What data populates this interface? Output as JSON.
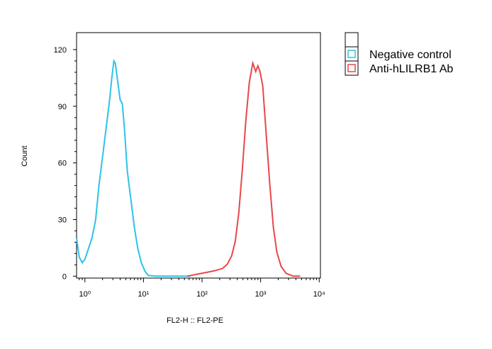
{
  "chart_data": {
    "type": "line",
    "x_label": "FL2-H :: FL2-PE",
    "y_label": "Count",
    "x_scale": "log",
    "xlim": [
      0.72,
      10500
    ],
    "ylim": [
      -1,
      129
    ],
    "xticks": [
      {
        "value": 1,
        "label": "10⁰"
      },
      {
        "value": 10,
        "label": "10¹"
      },
      {
        "value": 100,
        "label": "10²"
      },
      {
        "value": 1000,
        "label": "10³"
      },
      {
        "value": 10000,
        "label": "10⁴"
      }
    ],
    "yticks": [
      0,
      30,
      60,
      90,
      120
    ],
    "legend": "outside-right-top",
    "series": [
      {
        "name": "Negative control",
        "color": "#2cc3e8",
        "x": [
          0.72,
          0.8,
          0.9,
          1,
          1.15,
          1.32,
          1.52,
          1.74,
          2.0,
          2.3,
          2.64,
          2.87,
          3.12,
          3.3,
          3.58,
          4.0,
          4.35,
          4.73,
          5.28,
          6.07,
          6.97,
          8.0,
          9.2,
          10.6,
          12.1,
          16.0,
          64
        ],
        "values": [
          20.2,
          10.1,
          7.1,
          9,
          14.6,
          20.2,
          29.6,
          48.4,
          63.4,
          78.4,
          93.4,
          104.6,
          114,
          112.9,
          104.6,
          93.4,
          91.5,
          78.4,
          55.9,
          40.9,
          25.9,
          14.6,
          7.1,
          2.6,
          0.4,
          0,
          0
        ]
      },
      {
        "name": "Anti-hLILRB1 Ab",
        "color": "#e8474a",
        "x": [
          56,
          85,
          128,
          169,
          224,
          271,
          321,
          368,
          424,
          486,
          558,
          642,
          736,
          824,
          895,
          973,
          1086,
          1248,
          1435,
          1648,
          1892,
          2235,
          2715,
          3580,
          4730
        ],
        "values": [
          0,
          1.1,
          2.2,
          3,
          4.1,
          6.4,
          10.9,
          18.4,
          33.4,
          55.9,
          82.1,
          102.7,
          112.9,
          108.4,
          111.4,
          108.4,
          100.9,
          74.6,
          48.4,
          25.9,
          12.7,
          5.2,
          1.5,
          0,
          0
        ]
      }
    ]
  }
}
